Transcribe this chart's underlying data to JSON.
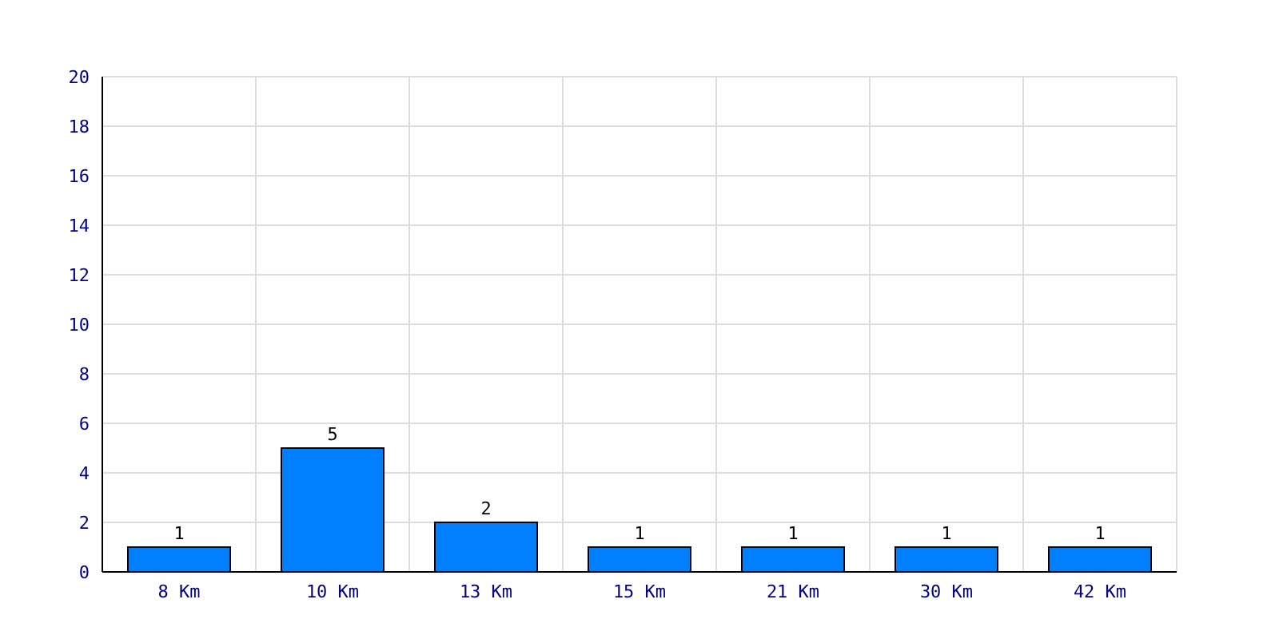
{
  "chart_data": {
    "type": "bar",
    "categories": [
      "8 Km",
      "10 Km",
      "13 Km",
      "15 Km",
      "21 Km",
      "30 Km",
      "42 Km"
    ],
    "values": [
      1,
      5,
      2,
      1,
      1,
      1,
      1
    ],
    "color": "#0080ff",
    "ylim": [
      0,
      20
    ],
    "yticks": [
      0,
      2,
      4,
      6,
      8,
      10,
      12,
      14,
      16,
      18,
      20
    ],
    "grid": true,
    "data_labels": true
  }
}
